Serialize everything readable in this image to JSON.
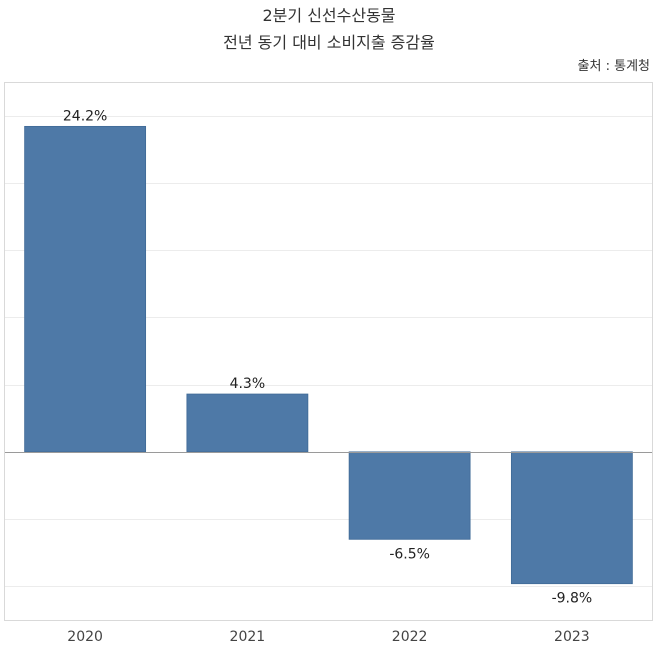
{
  "chart_data": {
    "type": "bar",
    "title_line1": "2분기 신선수산동물",
    "title_line2": "전년 동기 대비 소비지출 증감율",
    "source": "출처 : 통계청",
    "categories": [
      "2020",
      "2021",
      "2022",
      "2023"
    ],
    "values": [
      24.2,
      4.3,
      -6.5,
      -9.8
    ],
    "value_labels": [
      "24.2%",
      "4.3%",
      "-6.5%",
      "-9.8%"
    ],
    "ylim": [
      -12.5,
      27.5
    ],
    "gridlines": [
      -10,
      -5,
      0,
      5,
      10,
      15,
      20,
      25
    ],
    "bar_color": "#4e79a7",
    "grid_color": "#ececec",
    "zero_line_color": "#9a9a9a",
    "xlabel": "",
    "ylabel": ""
  }
}
